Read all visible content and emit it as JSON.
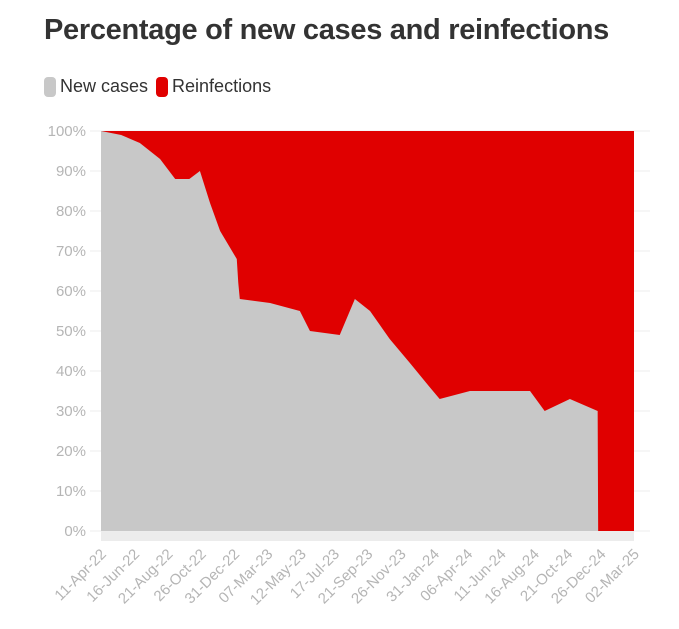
{
  "chart_data": {
    "type": "area",
    "title": "Percentage of new cases and reinfections",
    "stacked_percent": true,
    "x_unit": "days since 11-Apr-22",
    "x_range": [
      0,
      1056
    ],
    "ylim": [
      0,
      100
    ],
    "y_ticks": [
      "0%",
      "10%",
      "20%",
      "30%",
      "40%",
      "50%",
      "60%",
      "70%",
      "80%",
      "90%",
      "100%"
    ],
    "x_ticks": [
      "11-Apr-22",
      "16-Jun-22",
      "21-Aug-22",
      "26-Oct-22",
      "31-Dec-22",
      "07-Mar-23",
      "12-May-23",
      "17-Jul-23",
      "21-Sep-23",
      "26-Nov-23",
      "31-Jan-24",
      "06-Apr-24",
      "11-Jun-24",
      "16-Aug-24",
      "21-Oct-24",
      "26-Dec-24",
      "02-Mar-25"
    ],
    "x_tick_interval_days": 66,
    "legend": {
      "position": "top-left"
    },
    "series": [
      {
        "name": "New cases",
        "color": "#c8c8c8",
        "x": [
          0,
          40,
          77,
          117,
          147,
          175,
          196,
          216,
          236,
          269,
          272,
          275,
          335,
          394,
          414,
          473,
          503,
          533,
          572,
          612,
          651,
          671,
          731,
          790,
          850,
          879,
          929,
          984,
          985,
          1056
        ],
        "values": [
          100,
          99,
          97,
          93,
          88,
          88,
          90,
          82,
          75,
          68,
          62,
          58,
          57,
          55,
          50,
          49,
          58,
          55,
          48,
          42,
          36,
          33,
          35,
          35,
          35,
          30,
          33,
          30,
          0,
          0
        ]
      },
      {
        "name": "Reinfections",
        "color": "#e00000",
        "note": "remainder to 100%"
      }
    ]
  }
}
